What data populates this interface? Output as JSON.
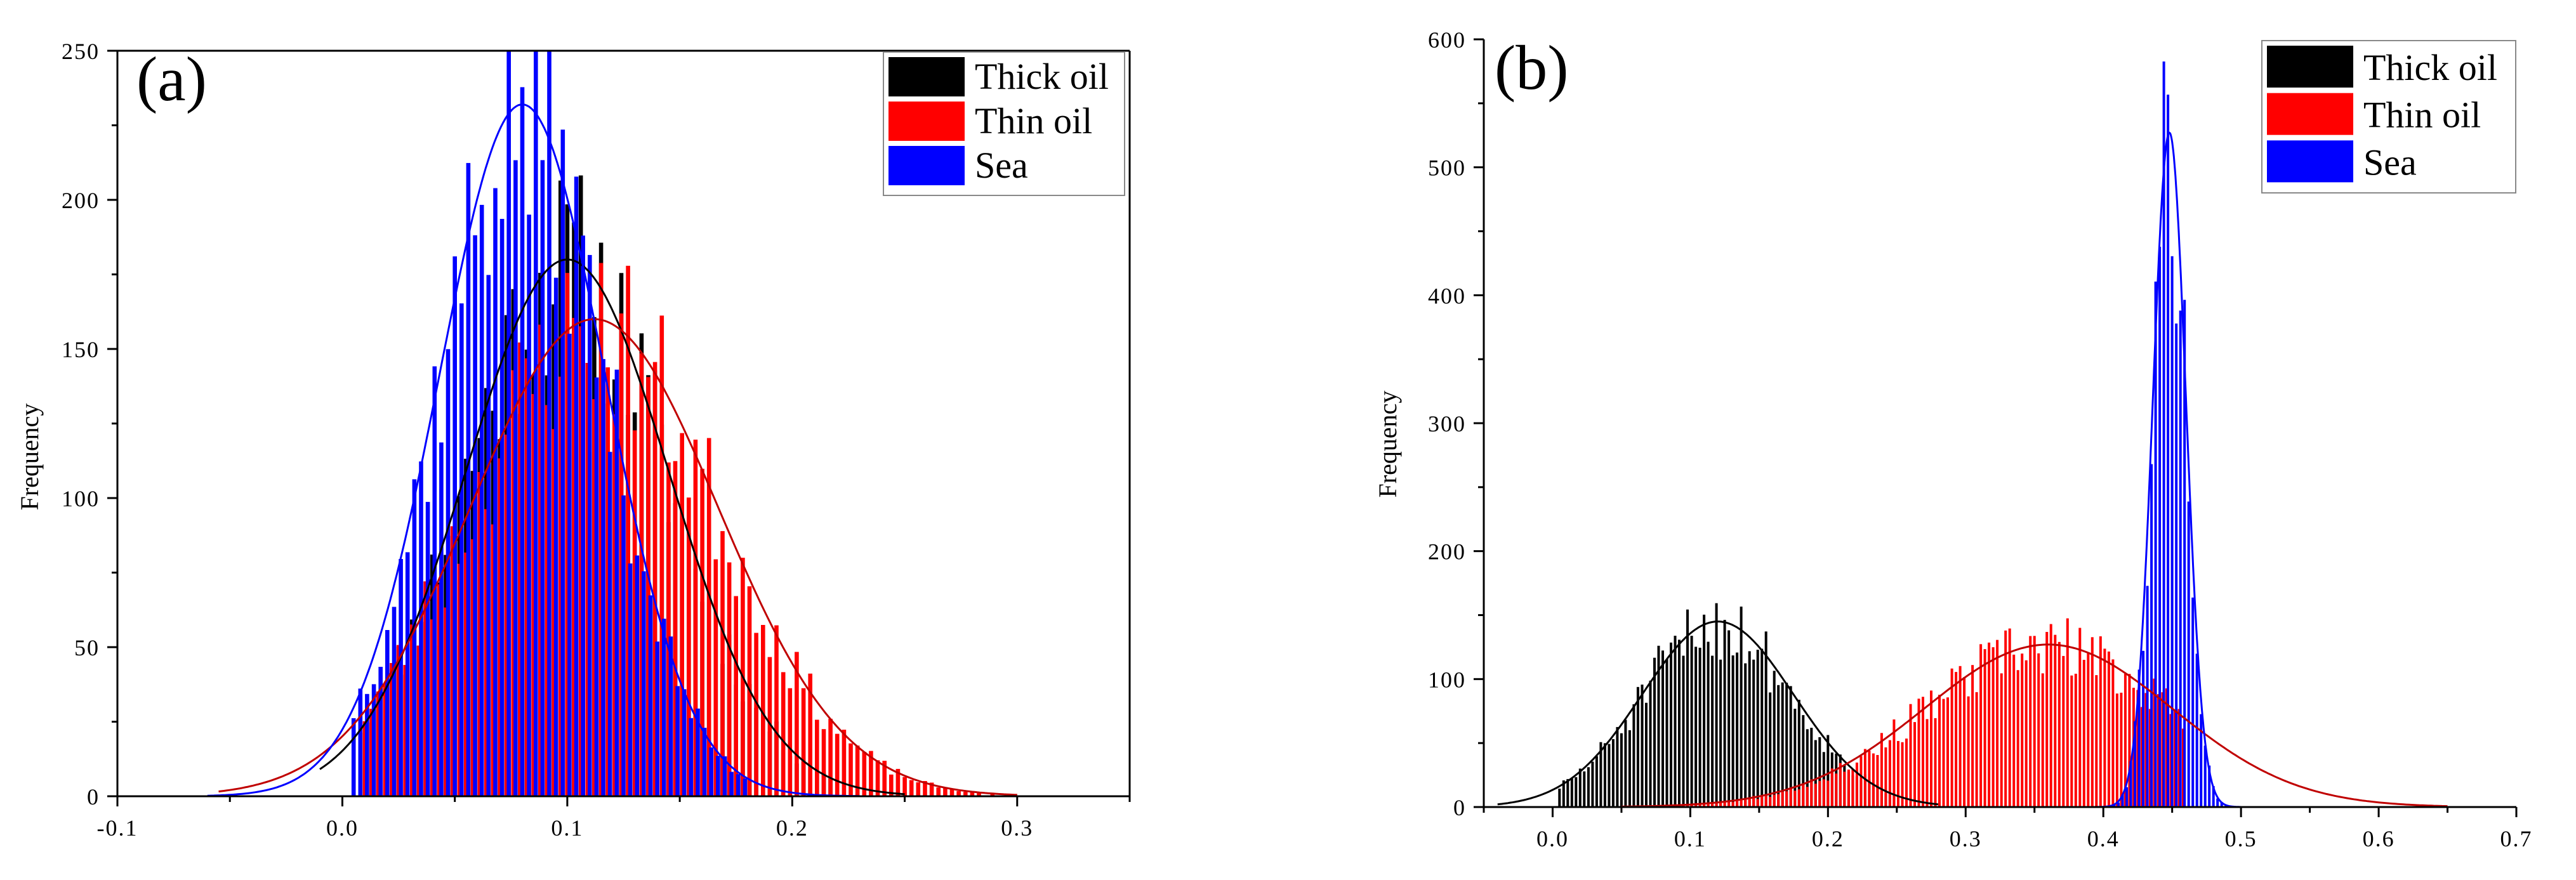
{
  "chart_data": [
    {
      "type": "histogram",
      "panel_label": "(a)",
      "title": "",
      "xlabel": "",
      "ylabel": "Frequency",
      "xlim": [
        -0.1,
        0.35
      ],
      "ylim": [
        0,
        250
      ],
      "xticks": [
        -0.1,
        0.0,
        0.1,
        0.2,
        0.3
      ],
      "xtick_labels": [
        "-0.1",
        "0.0",
        "0.1",
        "0.2",
        "0.3"
      ],
      "yticks": [
        0,
        50,
        100,
        150,
        200,
        250
      ],
      "ytick_labels": [
        "0",
        "50",
        "100",
        "150",
        "200",
        "250"
      ],
      "bin_width": 0.003,
      "legend_position": "top-right",
      "series": [
        {
          "name": "Thick oil",
          "color": "#000000",
          "fit": {
            "mean": 0.1,
            "sd": 0.045,
            "peak": 180,
            "range": [
              -0.01,
              0.25
            ]
          },
          "support": [
            0.01,
            0.22
          ],
          "seed": 11
        },
        {
          "name": "Thin oil",
          "color": "#ff0000",
          "fit": {
            "mean": 0.112,
            "sd": 0.055,
            "peak": 160,
            "range": [
              -0.055,
              0.3
            ]
          },
          "support": [
            0.01,
            0.3
          ],
          "seed": 23
        },
        {
          "name": "Sea",
          "color": "#0000ff",
          "fit": {
            "mean": 0.08,
            "sd": 0.037,
            "peak": 232,
            "range": [
              -0.06,
              0.23
            ]
          },
          "support": [
            0.005,
            0.18
          ],
          "seed": 37
        }
      ]
    },
    {
      "type": "histogram",
      "panel_label": "(b)",
      "title": "",
      "xlabel": "",
      "ylabel": "Frequency",
      "xlim": [
        -0.05,
        0.7
      ],
      "ylim": [
        0,
        600
      ],
      "xticks": [
        0.0,
        0.1,
        0.2,
        0.3,
        0.4,
        0.5,
        0.6,
        0.7
      ],
      "xtick_labels": [
        "0.0",
        "0.1",
        "0.2",
        "0.3",
        "0.4",
        "0.5",
        "0.6",
        "0.7"
      ],
      "yticks": [
        0,
        100,
        200,
        300,
        400,
        500,
        600
      ],
      "ytick_labels": [
        "0",
        "100",
        "200",
        "300",
        "400",
        "500",
        "600"
      ],
      "bin_width": 0.003,
      "legend_position": "top-right",
      "series": [
        {
          "name": "Thick oil",
          "color": "#000000",
          "fit": {
            "mean": 0.12,
            "sd": 0.055,
            "peak": 145,
            "range": [
              -0.04,
              0.28
            ]
          },
          "support": [
            0.005,
            0.25
          ],
          "seed": 51
        },
        {
          "name": "Thin oil",
          "color": "#ff0000",
          "fit": {
            "mean": 0.36,
            "sd": 0.09,
            "peak": 127,
            "range": [
              0.05,
              0.65
            ]
          },
          "support": [
            0.05,
            0.46
          ],
          "seed": 67
        },
        {
          "name": "Sea",
          "color": "#0000ff",
          "fit": {
            "mean": 0.448,
            "sd": 0.012,
            "peak": 527,
            "range": [
              0.38,
              0.5
            ]
          },
          "support": [
            0.39,
            0.49
          ],
          "seed": 79
        }
      ]
    }
  ]
}
